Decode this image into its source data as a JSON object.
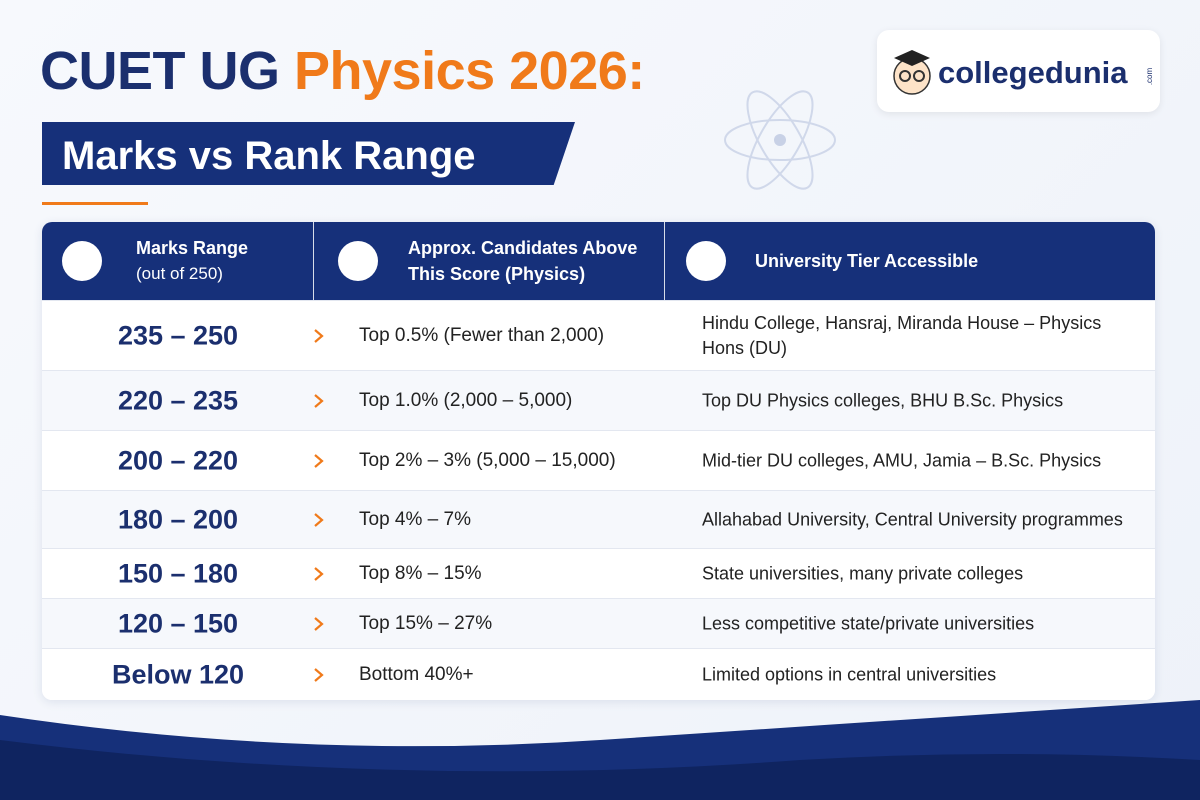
{
  "header": {
    "title_part1": "CUET UG",
    "title_part2": "Physics 2026:",
    "subtitle": "Marks vs Rank Range"
  },
  "logo": {
    "text": "collegedunia",
    "suffix": ".com"
  },
  "table": {
    "columns": [
      {
        "title": "Marks Range",
        "subtitle": "(out of 250)"
      },
      {
        "title": "Approx. Candidates Above This Score (Physics)"
      },
      {
        "title": "University Tier Accessible"
      }
    ],
    "rows": [
      [
        "235 – 250",
        "Top 0.5% (Fewer than 2,000)",
        "Hindu College, Hansraj, Miranda House – Physics Hons (DU)"
      ],
      [
        "220 – 235",
        "Top 1.0% (2,000 – 5,000)",
        "Top DU Physics colleges, BHU B.Sc. Physics"
      ],
      [
        "200 – 220",
        "Top 2% – 3% (5,000 – 15,000)",
        "Mid-tier DU colleges, AMU, Jamia – B.Sc. Physics"
      ],
      [
        "180 – 200",
        "Top 4% – 7%",
        "Allahabad University, Central University programmes"
      ],
      [
        "150 – 180",
        "Top 8% – 15%",
        "State universities, many private colleges"
      ],
      [
        "120 – 150",
        "Top 15% – 27%",
        "Less competitive state/private universities"
      ],
      [
        "Below 120",
        "Bottom 40%+",
        "Limited options in central universities"
      ]
    ]
  }
}
